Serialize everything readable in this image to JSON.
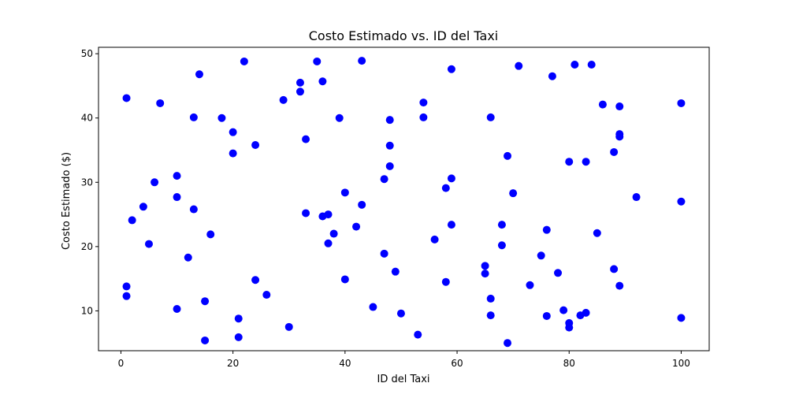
{
  "chart_data": {
    "type": "scatter",
    "title": "Costo Estimado vs. ID del Taxi",
    "xlabel": "ID del Taxi",
    "ylabel": "Costo Estimado ($)",
    "xlim": [
      -4,
      105
    ],
    "ylim": [
      3.8,
      51
    ],
    "xticks": [
      0,
      20,
      40,
      60,
      80,
      100
    ],
    "yticks": [
      10,
      20,
      30,
      40,
      50
    ],
    "grid": false,
    "marker_color": "#0000ff",
    "points": [
      {
        "x": 1,
        "y": 43.1
      },
      {
        "x": 1,
        "y": 13.8
      },
      {
        "x": 1,
        "y": 12.3
      },
      {
        "x": 2,
        "y": 24.1
      },
      {
        "x": 4,
        "y": 26.2
      },
      {
        "x": 5,
        "y": 20.4
      },
      {
        "x": 6,
        "y": 30.0
      },
      {
        "x": 7,
        "y": 42.3
      },
      {
        "x": 10,
        "y": 31.0
      },
      {
        "x": 10,
        "y": 27.7
      },
      {
        "x": 10,
        "y": 10.3
      },
      {
        "x": 12,
        "y": 18.3
      },
      {
        "x": 13,
        "y": 40.1
      },
      {
        "x": 13,
        "y": 25.8
      },
      {
        "x": 14,
        "y": 46.8
      },
      {
        "x": 15,
        "y": 11.5
      },
      {
        "x": 15,
        "y": 5.4
      },
      {
        "x": 16,
        "y": 21.9
      },
      {
        "x": 18,
        "y": 40.0
      },
      {
        "x": 20,
        "y": 37.8
      },
      {
        "x": 20,
        "y": 34.5
      },
      {
        "x": 21,
        "y": 8.8
      },
      {
        "x": 21,
        "y": 5.9
      },
      {
        "x": 22,
        "y": 48.8
      },
      {
        "x": 24,
        "y": 35.8
      },
      {
        "x": 24,
        "y": 14.8
      },
      {
        "x": 26,
        "y": 12.5
      },
      {
        "x": 29,
        "y": 42.8
      },
      {
        "x": 30,
        "y": 7.5
      },
      {
        "x": 32,
        "y": 45.5
      },
      {
        "x": 32,
        "y": 44.1
      },
      {
        "x": 33,
        "y": 36.7
      },
      {
        "x": 33,
        "y": 25.2
      },
      {
        "x": 35,
        "y": 48.8
      },
      {
        "x": 36,
        "y": 45.7
      },
      {
        "x": 36,
        "y": 24.7
      },
      {
        "x": 37,
        "y": 25.0
      },
      {
        "x": 37,
        "y": 20.5
      },
      {
        "x": 38,
        "y": 22.0
      },
      {
        "x": 39,
        "y": 40.0
      },
      {
        "x": 40,
        "y": 28.4
      },
      {
        "x": 40,
        "y": 14.9
      },
      {
        "x": 42,
        "y": 23.1
      },
      {
        "x": 43,
        "y": 48.9
      },
      {
        "x": 43,
        "y": 26.5
      },
      {
        "x": 45,
        "y": 10.6
      },
      {
        "x": 47,
        "y": 30.5
      },
      {
        "x": 47,
        "y": 18.9
      },
      {
        "x": 48,
        "y": 39.7
      },
      {
        "x": 48,
        "y": 35.7
      },
      {
        "x": 48,
        "y": 32.5
      },
      {
        "x": 49,
        "y": 16.1
      },
      {
        "x": 50,
        "y": 9.6
      },
      {
        "x": 53,
        "y": 6.3
      },
      {
        "x": 54,
        "y": 42.4
      },
      {
        "x": 54,
        "y": 40.1
      },
      {
        "x": 56,
        "y": 21.1
      },
      {
        "x": 58,
        "y": 29.1
      },
      {
        "x": 58,
        "y": 14.5
      },
      {
        "x": 59,
        "y": 47.6
      },
      {
        "x": 59,
        "y": 30.6
      },
      {
        "x": 59,
        "y": 23.4
      },
      {
        "x": 65,
        "y": 17.0
      },
      {
        "x": 65,
        "y": 15.8
      },
      {
        "x": 66,
        "y": 40.1
      },
      {
        "x": 66,
        "y": 11.9
      },
      {
        "x": 66,
        "y": 9.3
      },
      {
        "x": 68,
        "y": 23.4
      },
      {
        "x": 68,
        "y": 20.2
      },
      {
        "x": 69,
        "y": 34.1
      },
      {
        "x": 69,
        "y": 5.0
      },
      {
        "x": 70,
        "y": 28.3
      },
      {
        "x": 71,
        "y": 48.1
      },
      {
        "x": 73,
        "y": 14.0
      },
      {
        "x": 75,
        "y": 18.6
      },
      {
        "x": 76,
        "y": 22.6
      },
      {
        "x": 76,
        "y": 9.2
      },
      {
        "x": 77,
        "y": 46.5
      },
      {
        "x": 78,
        "y": 15.9
      },
      {
        "x": 79,
        "y": 10.1
      },
      {
        "x": 80,
        "y": 33.2
      },
      {
        "x": 80,
        "y": 8.1
      },
      {
        "x": 80,
        "y": 7.4
      },
      {
        "x": 81,
        "y": 48.3
      },
      {
        "x": 82,
        "y": 9.3
      },
      {
        "x": 83,
        "y": 33.2
      },
      {
        "x": 83,
        "y": 9.7
      },
      {
        "x": 84,
        "y": 48.3
      },
      {
        "x": 85,
        "y": 22.1
      },
      {
        "x": 86,
        "y": 42.1
      },
      {
        "x": 88,
        "y": 34.7
      },
      {
        "x": 88,
        "y": 16.5
      },
      {
        "x": 89,
        "y": 41.8
      },
      {
        "x": 89,
        "y": 37.5
      },
      {
        "x": 89,
        "y": 37.1
      },
      {
        "x": 89,
        "y": 13.9
      },
      {
        "x": 92,
        "y": 27.7
      },
      {
        "x": 100,
        "y": 42.3
      },
      {
        "x": 100,
        "y": 27.0
      },
      {
        "x": 100,
        "y": 8.9
      }
    ]
  }
}
